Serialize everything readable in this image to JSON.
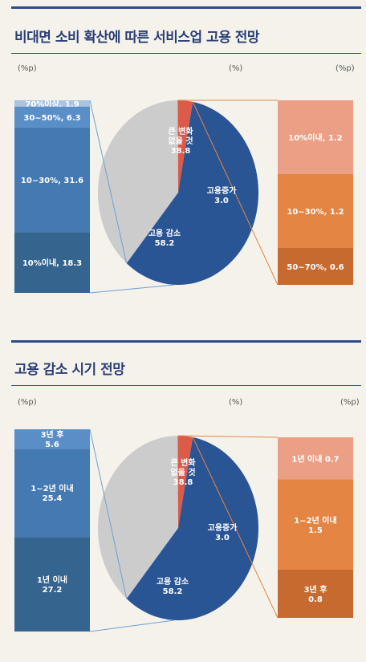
{
  "charts": [
    {
      "title": "비대면 소비 확산에 따른 서비스업 고용 전망",
      "unit_left": "(%p)",
      "unit_mid": "(%)",
      "unit_right": "(%p)",
      "pie": [
        {
          "label_lines": [
            "큰 변화",
            "없을 것",
            "38.8"
          ],
          "value": 38.8,
          "color": "#cccccc"
        },
        {
          "label_lines": [
            "고용증가",
            "3.0"
          ],
          "value": 3.0,
          "color": "#dc5a48"
        },
        {
          "label_lines": [
            "고용 감소",
            "58.2"
          ],
          "value": 58.2,
          "color": "#2a5595"
        }
      ],
      "left_stack": [
        {
          "label": "70%이상, 1.9",
          "value": 1.9,
          "color": "#a9c4e2"
        },
        {
          "label": "30~50%, 6.3",
          "value": 6.3,
          "color": "#5a8ec7"
        },
        {
          "label": "10~30%, 31.6",
          "value": 31.6,
          "color": "#4479b2"
        },
        {
          "label": "10%이내, 18.3",
          "value": 18.3,
          "color": "#35658f"
        }
      ],
      "right_stack": [
        {
          "label": "10%이내, 1.2",
          "value": 1.2,
          "color": "#eba086"
        },
        {
          "label": "10~30%, 1.2",
          "value": 1.2,
          "color": "#e58543"
        },
        {
          "label": "50~70%, 0.6",
          "value": 0.6,
          "color": "#c66a30"
        }
      ]
    },
    {
      "title": "고용 감소 시기 전망",
      "unit_left": "(%p)",
      "unit_mid": "(%)",
      "unit_right": "(%p)",
      "pie": [
        {
          "label_lines": [
            "큰 변화",
            "없을 것",
            "38.8"
          ],
          "value": 38.8,
          "color": "#cccccc"
        },
        {
          "label_lines": [
            "고용증가",
            "3.0"
          ],
          "value": 3.0,
          "color": "#dc5a48"
        },
        {
          "label_lines": [
            "고용 감소",
            "58.2"
          ],
          "value": 58.2,
          "color": "#2a5595"
        }
      ],
      "left_stack": [
        {
          "label_lines": [
            "3년 후",
            "5.6"
          ],
          "value": 5.6,
          "color": "#5a8ec7"
        },
        {
          "label_lines": [
            "1~2년 이내",
            "25.4"
          ],
          "value": 25.4,
          "color": "#4479b2"
        },
        {
          "label_lines": [
            "1년 이내",
            "27.2"
          ],
          "value": 27.2,
          "color": "#35658f"
        }
      ],
      "right_stack": [
        {
          "label_lines": [
            "1년 이내 0.7"
          ],
          "value": 0.7,
          "color": "#eba086"
        },
        {
          "label_lines": [
            "1~2년 이내",
            "1.5"
          ],
          "value": 1.5,
          "color": "#e58543"
        },
        {
          "label_lines": [
            "3년 후",
            "0.8"
          ],
          "value": 0.8,
          "color": "#c66a30"
        }
      ]
    }
  ],
  "chart_data": [
    {
      "type": "pie",
      "title": "비대면 소비 확산에 따른 서비스업 고용 전망",
      "unit": "(%)",
      "slices": [
        {
          "label": "큰 변화 없을 것",
          "value": 38.8
        },
        {
          "label": "고용증가",
          "value": 3.0
        },
        {
          "label": "고용 감소",
          "value": 58.2
        }
      ],
      "breakdown_of_decrease": {
        "unit": "(%p)",
        "categories": [
          "70%이상",
          "30~50%",
          "10~30%",
          "10%이내"
        ],
        "values": [
          1.9,
          6.3,
          31.6,
          18.3
        ]
      },
      "breakdown_of_increase": {
        "unit": "(%p)",
        "categories": [
          "10%이내",
          "10~30%",
          "50~70%"
        ],
        "values": [
          1.2,
          1.2,
          0.6
        ]
      }
    },
    {
      "type": "pie",
      "title": "고용 감소 시기 전망",
      "unit": "(%)",
      "slices": [
        {
          "label": "큰 변화 없을 것",
          "value": 38.8
        },
        {
          "label": "고용증가",
          "value": 3.0
        },
        {
          "label": "고용 감소",
          "value": 58.2
        }
      ],
      "breakdown_of_decrease": {
        "unit": "(%p)",
        "categories": [
          "3년 후",
          "1~2년 이내",
          "1년 이내"
        ],
        "values": [
          5.6,
          25.4,
          27.2
        ]
      },
      "breakdown_of_increase": {
        "unit": "(%p)",
        "categories": [
          "1년 이내",
          "1~2년 이내",
          "3년 후"
        ],
        "values": [
          0.7,
          1.5,
          0.8
        ]
      }
    }
  ]
}
